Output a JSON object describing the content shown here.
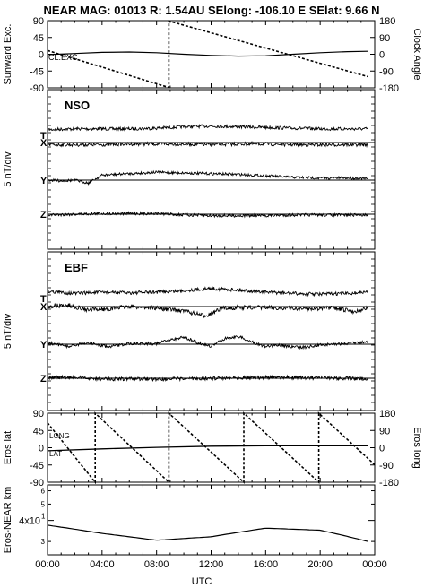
{
  "title": "NEAR MAG: 01013  R: 1.54AU  SElong: -106.10 E  SElat:    9.66 N",
  "x_axis": {
    "label": "UTC",
    "ticks": [
      "00:00",
      "04:00",
      "08:00",
      "12:00",
      "16:00",
      "20:00",
      "00:00"
    ],
    "hours": [
      0,
      4,
      8,
      12,
      16,
      20,
      24
    ]
  },
  "chart_data": [
    {
      "type": "line",
      "panel": "sunward-clock",
      "ylabel_left": "Sunward Exc.",
      "ylabel_right": "Clock Angle",
      "ylim_left": [
        -90,
        90
      ],
      "yticks_left": [
        "90",
        "45",
        "0",
        "-45",
        "-90"
      ],
      "ylim_right": [
        -180,
        180
      ],
      "yticks_right": [
        "180",
        "90",
        "0",
        "-90",
        "-180"
      ],
      "annotation": "CL.EXC.",
      "series": [
        {
          "key": "sunward",
          "axis": "left",
          "dashed": false,
          "x": [
            0,
            2,
            4,
            6,
            8,
            10,
            12,
            14,
            16,
            18,
            20,
            22,
            23.5
          ],
          "y": [
            -1,
            2,
            5,
            6,
            4,
            0,
            -3,
            -5,
            -4,
            0,
            4,
            7,
            8
          ]
        },
        {
          "key": "clock",
          "axis": "right",
          "dashed": true,
          "x": [
            0,
            8.9,
            8.9,
            23.5
          ],
          "y": [
            20,
            -178,
            178,
            -120
          ]
        }
      ]
    },
    {
      "type": "line",
      "panel": "nso",
      "label": "NSO",
      "ylabel": "5 nT/div",
      "components": [
        "T",
        "X",
        "Y",
        "Z"
      ],
      "baselines": [
        "X",
        "Y",
        "Z"
      ],
      "series": [
        {
          "name": "T",
          "x": [
            0,
            2,
            4,
            6,
            8,
            10,
            12,
            14,
            16,
            18,
            20,
            22,
            23.5
          ],
          "y": [
            -0.8,
            -0.9,
            -0.9,
            -0.9,
            -1.0,
            -1.2,
            -1.3,
            -1.2,
            -1.1,
            -1.0,
            -0.9,
            -0.9,
            -0.9
          ],
          "noise": 0.22
        },
        {
          "name": "X",
          "x": [
            0,
            2,
            4,
            6,
            8,
            10,
            12,
            14,
            16,
            18,
            20,
            22,
            23.5
          ],
          "y": [
            0.3,
            0.3,
            0.3,
            0.2,
            0.2,
            0.2,
            0.3,
            0.2,
            0.2,
            0.3,
            0.3,
            0.3,
            0.3
          ],
          "noise": 0.25
        },
        {
          "name": "Y",
          "x": [
            0,
            1,
            2,
            3,
            4,
            6,
            8,
            10,
            12,
            14,
            16,
            18,
            20,
            22,
            23.5
          ],
          "y": [
            0.0,
            0.1,
            0.0,
            0.4,
            -0.7,
            -0.9,
            -1.1,
            -1.0,
            -0.9,
            -0.8,
            -0.6,
            -0.4,
            -0.3,
            -0.3,
            -0.2
          ],
          "noise": 0.18
        },
        {
          "name": "Z",
          "x": [
            0,
            2,
            4,
            6,
            8,
            10,
            12,
            14,
            16,
            18,
            20,
            22,
            23.5
          ],
          "y": [
            0.1,
            0.0,
            -0.1,
            -0.1,
            -0.1,
            0.1,
            0.2,
            0.2,
            0.2,
            0.1,
            0.1,
            0.1,
            0.1
          ],
          "noise": 0.2
        }
      ]
    },
    {
      "type": "line",
      "panel": "ebf",
      "label": "EBF",
      "ylabel": "5 nT/div",
      "components": [
        "T",
        "X",
        "Y",
        "Z"
      ],
      "baselines": [
        "X",
        "Y",
        "Z"
      ],
      "series": [
        {
          "name": "T",
          "x": [
            0,
            2,
            4,
            6,
            8,
            10,
            12,
            14,
            16,
            18,
            20,
            22,
            23.5
          ],
          "y": [
            -1.0,
            -0.7,
            -0.9,
            -0.8,
            -0.9,
            -1.1,
            -1.4,
            -1.2,
            -0.9,
            -0.7,
            -0.6,
            -0.7,
            -0.9
          ],
          "noise": 0.24
        },
        {
          "name": "X",
          "x": [
            0,
            1.5,
            3,
            4.5,
            6,
            8,
            10,
            11.5,
            13,
            15,
            17,
            19,
            21,
            22.5,
            23.5
          ],
          "y": [
            0.0,
            -0.2,
            0.5,
            0.3,
            0.0,
            0.2,
            0.6,
            1.3,
            0.2,
            0.1,
            0.2,
            0.3,
            0.2,
            0.7,
            0.2
          ],
          "noise": 0.3
        },
        {
          "name": "Y",
          "x": [
            0,
            1.5,
            3,
            4.5,
            6,
            8,
            9,
            10,
            11,
            12,
            13,
            14,
            15,
            16,
            17,
            18,
            19,
            20,
            21,
            22,
            23.5
          ],
          "y": [
            -0.2,
            0.3,
            -0.2,
            0.4,
            -0.1,
            -0.1,
            -0.6,
            -1.0,
            -0.2,
            0.3,
            -0.8,
            -1.1,
            -0.3,
            0.3,
            0.1,
            0.4,
            0.4,
            0.1,
            0.0,
            -0.1,
            -0.4
          ],
          "noise": 0.2
        },
        {
          "name": "Z",
          "x": [
            0,
            2,
            4,
            6,
            8,
            10,
            12,
            14,
            16,
            18,
            20,
            22,
            23.5
          ],
          "y": [
            -0.1,
            -0.1,
            0.1,
            0.1,
            0.1,
            0.1,
            0.0,
            -0.1,
            -0.1,
            -0.1,
            0.0,
            0.0,
            0.1
          ],
          "noise": 0.25
        }
      ]
    },
    {
      "type": "line",
      "panel": "eros-lat-long",
      "ylabel_left": "Eros lat",
      "ylabel_right": "Eros long",
      "ylim_left": [
        -90,
        90
      ],
      "yticks_left": [
        "90",
        "45",
        "0",
        "-45",
        "-90"
      ],
      "ylim_right": [
        -180,
        180
      ],
      "yticks_right": [
        "180",
        "90",
        "0",
        "-90",
        "-180"
      ],
      "annotations": [
        "LONG",
        "LAT"
      ],
      "series": [
        {
          "key": "lat",
          "axis": "left",
          "dashed": false,
          "x": [
            0,
            4,
            8,
            12,
            16,
            20,
            23.5
          ],
          "y": [
            -8,
            -3,
            1,
            4,
            5,
            5,
            5
          ]
        },
        {
          "key": "long",
          "axis": "right",
          "dashed": true,
          "x": [
            0,
            3.5,
            3.5,
            8.9,
            8.9,
            14.4,
            14.4,
            19.9,
            19.9,
            25.4
          ],
          "y": [
            130,
            -180,
            180,
            -180,
            180,
            -180,
            180,
            -180,
            180,
            -180
          ]
        }
      ]
    },
    {
      "type": "line",
      "panel": "eros-near-range",
      "ylabel": "Eros-NEAR km",
      "ytick_label": "4x10",
      "ytick_exp": "1",
      "ytick_value": 40,
      "yminor_labels": [
        "6",
        "5",
        "3"
      ],
      "ylim": [
        25,
        65
      ],
      "series": [
        {
          "key": "range",
          "dashed": false,
          "x": [
            0,
            4,
            8,
            12,
            16,
            20,
            23.5
          ],
          "y": [
            37.5,
            33.5,
            30.5,
            32,
            36,
            35,
            30
          ]
        }
      ]
    }
  ]
}
